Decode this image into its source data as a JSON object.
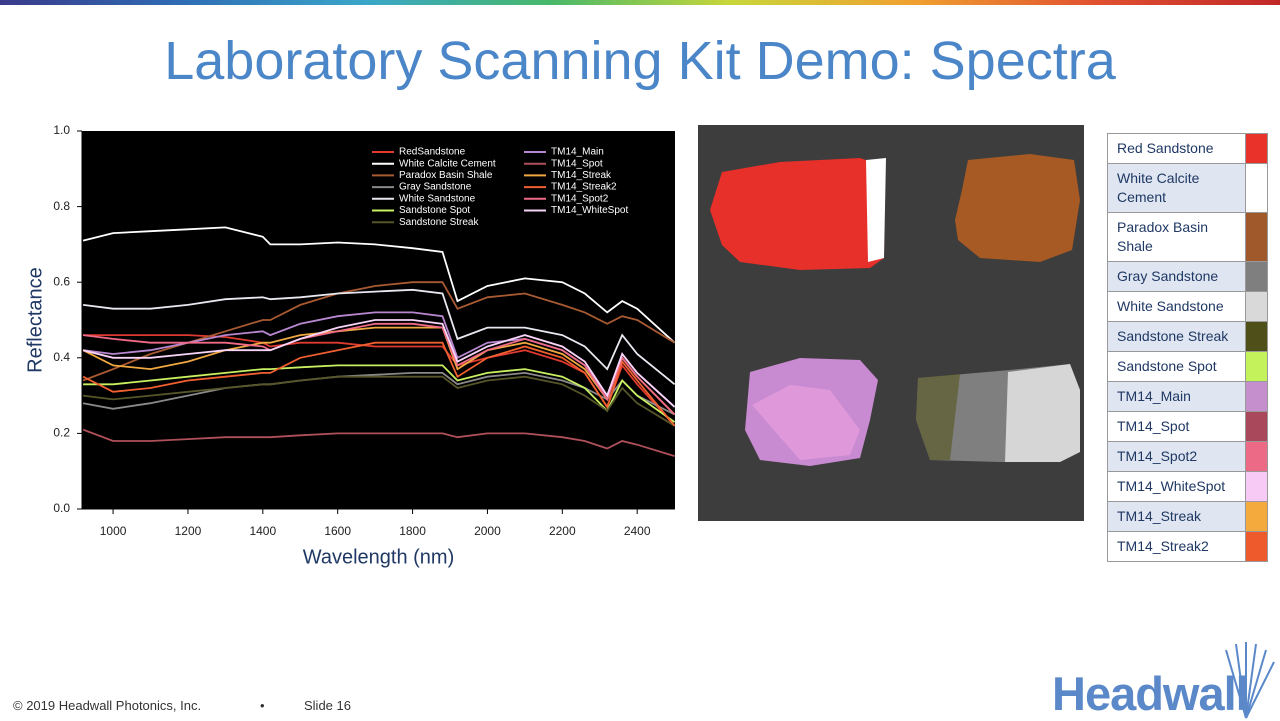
{
  "chart_data": {
    "type": "line",
    "title": "Laboratory Scanning Kit Demo:  Spectra",
    "x_label": "Wavelength (nm)",
    "y_label": "Reflectance",
    "x": [
      920,
      1000,
      1100,
      1200,
      1300,
      1400,
      1420,
      1500,
      1600,
      1700,
      1800,
      1880,
      1920,
      2000,
      2100,
      2200,
      2260,
      2320,
      2360,
      2400,
      2500
    ],
    "xlim": [
      917,
      2501
    ],
    "ylim": [
      0,
      1
    ],
    "xticks": [
      1000,
      1200,
      1400,
      1600,
      1800,
      2000,
      2200,
      2400
    ],
    "yticks": [
      {
        "value": 0,
        "label": "0.0"
      },
      0.2,
      0.4,
      0.6,
      0.8,
      {
        "value": 1,
        "label": "1.0"
      }
    ],
    "series": [
      {
        "name": "RedSandstone",
        "color": "#e03a30",
        "values": [
          0.46,
          0.46,
          0.46,
          0.46,
          0.455,
          0.44,
          0.43,
          0.44,
          0.44,
          0.43,
          0.43,
          0.43,
          0.38,
          0.4,
          0.42,
          0.39,
          0.36,
          0.27,
          0.38,
          0.33,
          0.22
        ]
      },
      {
        "name": "White Calcite Cement",
        "color": "#ffffff",
        "values": [
          0.71,
          0.73,
          0.735,
          0.74,
          0.745,
          0.72,
          0.7,
          0.7,
          0.705,
          0.7,
          0.69,
          0.68,
          0.55,
          0.59,
          0.61,
          0.6,
          0.57,
          0.52,
          0.55,
          0.53,
          0.44
        ]
      },
      {
        "name": "Paradox Basin Shale",
        "color": "#a85a32",
        "values": [
          0.34,
          0.37,
          0.41,
          0.44,
          0.47,
          0.5,
          0.5,
          0.54,
          0.57,
          0.59,
          0.6,
          0.6,
          0.53,
          0.56,
          0.57,
          0.54,
          0.52,
          0.49,
          0.51,
          0.5,
          0.44
        ]
      },
      {
        "name": "Gray Sandstone",
        "color": "#8a8a8a",
        "values": [
          0.28,
          0.265,
          0.28,
          0.3,
          0.32,
          0.33,
          0.33,
          0.34,
          0.35,
          0.355,
          0.36,
          0.36,
          0.33,
          0.35,
          0.36,
          0.34,
          0.32,
          0.29,
          0.34,
          0.3,
          0.25
        ]
      },
      {
        "name": "White Sandstone",
        "color": "#e8e8f0",
        "values": [
          0.54,
          0.53,
          0.53,
          0.54,
          0.555,
          0.56,
          0.555,
          0.56,
          0.57,
          0.575,
          0.58,
          0.57,
          0.45,
          0.48,
          0.48,
          0.46,
          0.43,
          0.37,
          0.46,
          0.41,
          0.33
        ]
      },
      {
        "name": "Sandstone Spot",
        "color": "#c8f060",
        "values": [
          0.33,
          0.33,
          0.34,
          0.35,
          0.36,
          0.37,
          0.37,
          0.375,
          0.38,
          0.38,
          0.38,
          0.38,
          0.34,
          0.36,
          0.37,
          0.35,
          0.32,
          0.26,
          0.34,
          0.3,
          0.23
        ]
      },
      {
        "name": "Sandstone Streak",
        "color": "#56562a",
        "values": [
          0.3,
          0.29,
          0.3,
          0.31,
          0.32,
          0.33,
          0.33,
          0.34,
          0.35,
          0.35,
          0.35,
          0.35,
          0.32,
          0.34,
          0.35,
          0.33,
          0.3,
          0.26,
          0.32,
          0.28,
          0.22
        ]
      },
      {
        "name": "TM14_Main",
        "color": "#b887d0",
        "values": [
          0.42,
          0.41,
          0.42,
          0.44,
          0.46,
          0.47,
          0.46,
          0.49,
          0.51,
          0.52,
          0.52,
          0.51,
          0.4,
          0.44,
          0.45,
          0.42,
          0.38,
          0.3,
          0.41,
          0.36,
          0.27
        ]
      },
      {
        "name": "TM14_Spot",
        "color": "#b0505a",
        "values": [
          0.21,
          0.18,
          0.18,
          0.185,
          0.19,
          0.19,
          0.19,
          0.195,
          0.2,
          0.2,
          0.2,
          0.2,
          0.19,
          0.2,
          0.2,
          0.19,
          0.18,
          0.16,
          0.18,
          0.17,
          0.14
        ]
      },
      {
        "name": "TM14_Streak",
        "color": "#f0a840",
        "values": [
          0.42,
          0.38,
          0.37,
          0.39,
          0.42,
          0.44,
          0.44,
          0.46,
          0.47,
          0.48,
          0.48,
          0.48,
          0.37,
          0.42,
          0.44,
          0.41,
          0.37,
          0.29,
          0.4,
          0.35,
          0.25
        ]
      },
      {
        "name": "TM14_Streak2",
        "color": "#f06030",
        "values": [
          0.35,
          0.31,
          0.32,
          0.34,
          0.35,
          0.36,
          0.36,
          0.4,
          0.42,
          0.44,
          0.44,
          0.44,
          0.35,
          0.4,
          0.43,
          0.4,
          0.36,
          0.27,
          0.39,
          0.34,
          0.22
        ]
      },
      {
        "name": "TM14_Spot2",
        "color": "#f06a88",
        "values": [
          0.46,
          0.45,
          0.44,
          0.44,
          0.44,
          0.43,
          0.42,
          0.45,
          0.47,
          0.49,
          0.49,
          0.48,
          0.38,
          0.42,
          0.45,
          0.42,
          0.38,
          0.29,
          0.4,
          0.35,
          0.25
        ]
      },
      {
        "name": "TM14_WhiteSpot",
        "color": "#f8d4f8",
        "values": [
          0.42,
          0.4,
          0.4,
          0.41,
          0.42,
          0.42,
          0.42,
          0.45,
          0.48,
          0.5,
          0.5,
          0.49,
          0.39,
          0.43,
          0.46,
          0.43,
          0.39,
          0.3,
          0.41,
          0.36,
          0.27
        ]
      }
    ]
  },
  "legend_table": {
    "rows": [
      {
        "label": "Red Sandstone",
        "color": "#e8322a"
      },
      {
        "label": "White Calcite Cement",
        "color": "#ffffff"
      },
      {
        "label": "Paradox Basin Shale",
        "color": "#a0592b"
      },
      {
        "label": "Gray Sandstone",
        "color": "#7f7f7f"
      },
      {
        "label": "White Sandstone",
        "color": "#d9d9d9"
      },
      {
        "label": "Sandstone Streak",
        "color": "#4f4f1a"
      },
      {
        "label": "Sandstone Spot",
        "color": "#c4f25a"
      },
      {
        "label": "TM14_Main",
        "color": "#c48fcc"
      },
      {
        "label": "TM14_Spot",
        "color": "#a8485a"
      },
      {
        "label": "TM14_Spot2",
        "color": "#ec6a86"
      },
      {
        "label": "TM14_WhiteSpot",
        "color": "#f6caf4"
      },
      {
        "label": "TM14_Streak",
        "color": "#f4aa3c"
      },
      {
        "label": "TM14_Streak2",
        "color": "#ee5a2c"
      }
    ]
  },
  "footer": {
    "copyright": "© 2019 Headwall Photonics, Inc.",
    "separator": "•",
    "slide": "Slide 16"
  },
  "logo": "Headwall"
}
